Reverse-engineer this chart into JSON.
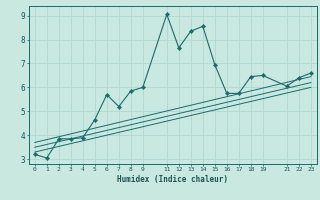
{
  "xlabel": "Humidex (Indice chaleur)",
  "ylabel": "",
  "background_color": "#c8e8e0",
  "grid_color": "#b0d8d0",
  "line_color": "#1a6b6b",
  "xlim": [
    -0.5,
    23.5
  ],
  "ylim": [
    2.8,
    9.4
  ],
  "xticks": [
    0,
    1,
    2,
    3,
    4,
    5,
    6,
    7,
    8,
    9,
    11,
    12,
    13,
    14,
    15,
    16,
    17,
    18,
    19,
    21,
    22,
    23
  ],
  "yticks": [
    3,
    4,
    5,
    6,
    7,
    8,
    9
  ],
  "series": [
    {
      "x": [
        0,
        1,
        2,
        3,
        4,
        5,
        6,
        7,
        8,
        9,
        11,
        12,
        13,
        14,
        15,
        16,
        17,
        18,
        19,
        21,
        22,
        23
      ],
      "y": [
        3.2,
        3.05,
        3.85,
        3.85,
        3.9,
        4.65,
        5.7,
        5.2,
        5.85,
        6.0,
        9.05,
        7.65,
        8.35,
        8.55,
        6.95,
        5.75,
        5.75,
        6.45,
        6.5,
        6.05,
        6.4,
        6.6
      ],
      "marker": "D",
      "linewidth": 0.8,
      "markersize": 2.2
    },
    {
      "x": [
        0,
        23
      ],
      "y": [
        3.3,
        6.0
      ],
      "marker": null,
      "linewidth": 0.7
    },
    {
      "x": [
        0,
        23
      ],
      "y": [
        3.5,
        6.2
      ],
      "marker": null,
      "linewidth": 0.7
    },
    {
      "x": [
        0,
        23
      ],
      "y": [
        3.7,
        6.45
      ],
      "marker": null,
      "linewidth": 0.7
    }
  ]
}
